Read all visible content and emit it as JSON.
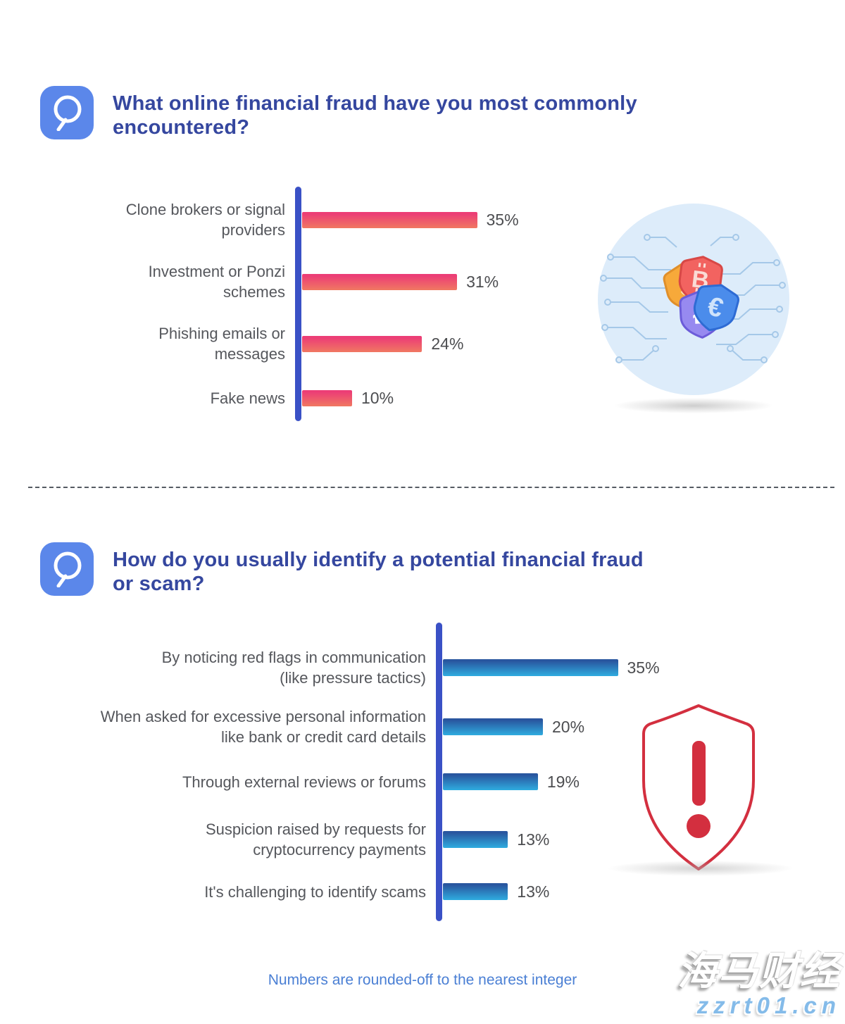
{
  "palette": {
    "title_blue": "#35479f",
    "q_icon_bg": "#5b87ea",
    "axis_blue": "#3a51c6",
    "pink_bar_top": "#ec3e76",
    "pink_bar_bottom": "#f07862",
    "blue_bar_top": "#29569f",
    "blue_bar_bottom": "#2face0",
    "label_gray": "#55575c",
    "alert_shield_red": "#d32f3f",
    "footnote_blue": "#4a7fd4"
  },
  "header_q1": {
    "title": "What online financial fraud have you most commonly encountered?",
    "title_lines": [
      "What online financial fraud have you most commonly",
      "encountered?"
    ]
  },
  "header_q2": {
    "title": "How do you usually identify a potential financial fraud or scam?",
    "title_lines": [
      "How do you usually identify a potential financial fraud",
      "or scam?"
    ]
  },
  "chart_data": [
    {
      "type": "bar",
      "orientation": "horizontal",
      "question": "What online financial fraud have you most commonly encountered?",
      "categories": [
        "Clone brokers or signal providers",
        "Investment or Ponzi schemes",
        "Phishing emails or messages",
        "Fake news"
      ],
      "values": [
        35,
        31,
        24,
        10
      ],
      "unit": "%",
      "value_labels": [
        "35%",
        "31%",
        "24%",
        "10%"
      ],
      "xlim": [
        0,
        40
      ],
      "grid": false,
      "bar_gradient": [
        "#ec3e76",
        "#f07862"
      ],
      "rows": [
        {
          "line1": "Clone brokers or signal",
          "line2": "providers",
          "value": 35,
          "value_label": "35%"
        },
        {
          "line1": "Investment or Ponzi",
          "line2": "schemes",
          "value": 31,
          "value_label": "31%"
        },
        {
          "line1": "Phishing emails or",
          "line2": "messages",
          "value": 24,
          "value_label": "24%"
        },
        {
          "line1": "Fake news",
          "value": 10,
          "value_label": "10%"
        }
      ]
    },
    {
      "type": "bar",
      "orientation": "horizontal",
      "question": "How do you usually identify a potential financial fraud or scam?",
      "categories": [
        "By noticing red flags in communication (like pressure tactics)",
        "When asked for excessive personal information like bank or credit card details",
        "Through external reviews or forums",
        "Suspicion raised by requests for cryptocurrency payments",
        "It's challenging to identify scams"
      ],
      "values": [
        35,
        20,
        19,
        13,
        13
      ],
      "unit": "%",
      "value_labels": [
        "35%",
        "20%",
        "19%",
        "13%",
        "13%"
      ],
      "xlim": [
        0,
        40
      ],
      "grid": false,
      "bar_gradient": [
        "#29569f",
        "#2face0"
      ],
      "rows": [
        {
          "line1": "By noticing red flags in communication",
          "line2": "(like pressure tactics)",
          "value": 35,
          "value_label": "35%"
        },
        {
          "line1": "When asked for excessive personal information",
          "line2": "like bank or credit card details",
          "value": 20,
          "value_label": "20%"
        },
        {
          "line1": "Through external reviews or forums",
          "value": 19,
          "value_label": "19%"
        },
        {
          "line1": "Suspicion raised by requests for",
          "line2": "cryptocurrency payments",
          "value": 13,
          "value_label": "13%"
        },
        {
          "line1": "It's challenging to identify scams",
          "value": 13,
          "value_label": "13%"
        }
      ]
    }
  ],
  "illustrations": {
    "currency_circuit": {
      "name": "currency-shields-on-circuit-circle",
      "dollar_symbol": "$",
      "bitcoin_symbol": "B",
      "euro_symbol": "€",
      "litecoin_symbol": "Ł"
    },
    "alert_shield": {
      "name": "red-alert-shield",
      "symbol": "!"
    }
  },
  "footnote": "Numbers are rounded-off to the nearest integer",
  "watermark": {
    "line1": "海马财经",
    "line2": "zzrt01.cn"
  }
}
